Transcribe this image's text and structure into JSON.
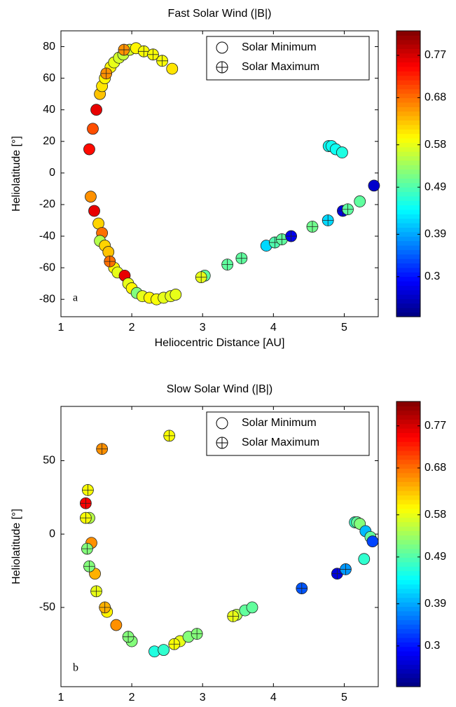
{
  "chart_data": [
    {
      "type": "scatter",
      "title": "Fast Solar Wind (|B|)",
      "x_label": "Heliocentric Distance [AU]",
      "y_label": "Heliolatitude [°]",
      "annotation": "a",
      "xlim": [
        1,
        5.48
      ],
      "ylim": [
        -91,
        90
      ],
      "xticks": [
        1,
        2,
        3,
        4,
        5
      ],
      "yticks": [
        -80,
        -60,
        -40,
        -20,
        0,
        20,
        40,
        60,
        80
      ],
      "colormap": "jet",
      "clim": [
        0.215,
        0.822
      ],
      "cticks": [
        0.3,
        0.39,
        0.49,
        0.58,
        0.68,
        0.77
      ],
      "legend": "upper right",
      "series": [
        {
          "name": "Solar Minimum",
          "marker": "circle",
          "x": [
            1.45,
            1.4,
            1.5,
            1.55,
            1.58,
            1.62,
            1.7,
            1.75,
            1.82,
            1.88,
            1.97,
            2.06,
            2.57,
            1.42,
            1.47,
            1.53,
            1.58,
            1.55,
            1.62,
            1.67,
            1.75,
            1.8,
            1.9,
            1.95,
            2.0,
            2.07,
            2.15,
            2.25,
            2.35,
            2.45,
            2.55,
            2.62,
            3.03,
            3.9,
            5.22,
            5.42,
            4.78,
            4.82,
            4.88,
            4.97
          ],
          "y": [
            28,
            15,
            40,
            50,
            55,
            60,
            67,
            70,
            73,
            75,
            78,
            79,
            66,
            -15,
            -24,
            -32,
            -38,
            -43,
            -46,
            -50,
            -60,
            -63,
            -65,
            -70,
            -73,
            -76,
            -78,
            -79,
            -80,
            -79,
            -78,
            -77,
            -65,
            -46,
            -18,
            -8,
            17,
            17,
            15,
            13
          ],
          "c": [
            0.7,
            0.74,
            0.76,
            0.63,
            0.61,
            0.6,
            0.6,
            0.58,
            0.57,
            0.56,
            0.57,
            0.6,
            0.61,
            0.66,
            0.76,
            0.62,
            0.68,
            0.55,
            0.62,
            0.63,
            0.6,
            0.58,
            0.76,
            0.58,
            0.6,
            0.52,
            0.58,
            0.6,
            0.59,
            0.58,
            0.58,
            0.58,
            0.5,
            0.42,
            0.5,
            0.26,
            0.45,
            0.45,
            0.45,
            0.46
          ]
        },
        {
          "name": "Solar Maximum",
          "marker": "circle-plus",
          "x": [
            1.89,
            1.64,
            1.69,
            2.17,
            2.3,
            2.43,
            2.98,
            3.35,
            3.55,
            4.02,
            4.12,
            4.25,
            4.55,
            4.77,
            4.98,
            5.05
          ],
          "y": [
            78,
            63,
            -56,
            77,
            75,
            71,
            -66,
            -58,
            -54,
            -44,
            -42,
            -40,
            -34,
            -30,
            -24,
            -23
          ],
          "c": [
            0.66,
            0.66,
            0.68,
            0.59,
            0.59,
            0.59,
            0.58,
            0.5,
            0.5,
            0.49,
            0.5,
            0.28,
            0.51,
            0.42,
            0.27,
            0.5
          ]
        }
      ]
    },
    {
      "type": "scatter",
      "title": "Slow Solar Wind (|B|)",
      "x_label": "Heliocentric Distance [AU]",
      "y_label": "Heliolatitude [°]",
      "annotation": "b",
      "xlim": [
        1,
        5.48
      ],
      "ylim": [
        -104,
        87
      ],
      "xticks": [
        1,
        2,
        3,
        4,
        5
      ],
      "yticks": [
        -50,
        0,
        50
      ],
      "colormap": "jet",
      "clim": [
        0.213,
        0.822
      ],
      "cticks": [
        0.3,
        0.39,
        0.49,
        0.58,
        0.68,
        0.77
      ],
      "legend": "upper right",
      "series": [
        {
          "name": "Solar Minimum",
          "marker": "circle",
          "x": [
            1.4,
            1.43,
            1.48,
            1.65,
            1.78,
            2.0,
            2.32,
            2.45,
            2.68,
            2.8,
            3.48,
            3.6,
            3.7,
            5.15,
            5.18,
            5.22,
            5.3,
            5.37,
            5.4,
            5.28
          ],
          "y": [
            11,
            -6,
            -27,
            -53,
            -62,
            -73,
            -80,
            -79,
            -73,
            -70,
            -55,
            -52,
            -50,
            8,
            8,
            7,
            2,
            -2,
            -5,
            -17
          ],
          "c": [
            0.55,
            0.66,
            0.64,
            0.6,
            0.66,
            0.52,
            0.46,
            0.47,
            0.58,
            0.52,
            0.55,
            0.5,
            0.5,
            0.47,
            0.5,
            0.52,
            0.4,
            0.5,
            0.33,
            0.47
          ]
        },
        {
          "name": "Solar Maximum",
          "marker": "circle-plus",
          "x": [
            1.58,
            2.53,
            1.38,
            1.35,
            1.35,
            1.37,
            1.4,
            1.5,
            1.62,
            1.95,
            2.6,
            2.92,
            3.43,
            4.4,
            4.9,
            5.02
          ],
          "y": [
            58,
            67,
            30,
            21,
            11,
            -10,
            -22,
            -39,
            -50,
            -70,
            -75,
            -68,
            -56,
            -37,
            -27,
            -24
          ],
          "c": [
            0.66,
            0.59,
            0.59,
            0.75,
            0.59,
            0.52,
            0.52,
            0.58,
            0.64,
            0.52,
            0.59,
            0.52,
            0.58,
            0.34,
            0.27,
            0.38
          ]
        }
      ]
    }
  ]
}
